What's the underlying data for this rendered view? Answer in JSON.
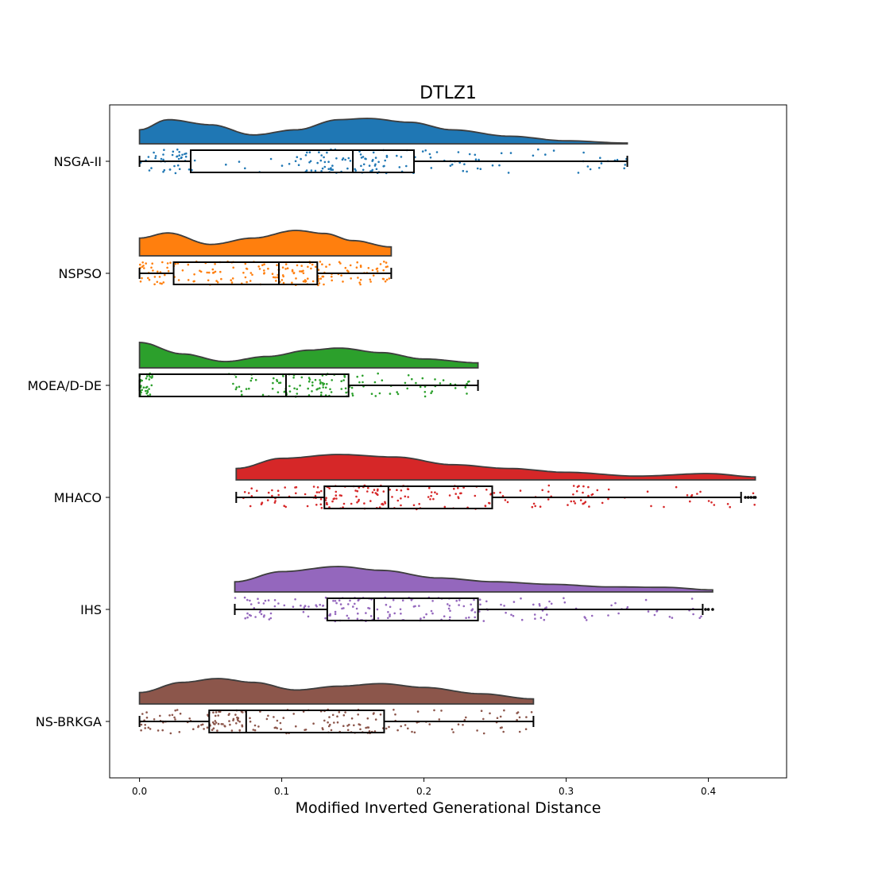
{
  "chart_data": {
    "type": "raincloud",
    "title": "DTLZ1",
    "xlabel": "Modified Inverted Generational Distance",
    "ylabel": "",
    "xlim": [
      -0.021,
      0.455
    ],
    "x_ticks": [
      "0.0",
      "0.1",
      "0.2",
      "0.3",
      "0.4"
    ],
    "x_tick_values": [
      0.0,
      0.1,
      0.2,
      0.3,
      0.4
    ],
    "grid": false,
    "series": [
      {
        "name": "NSGA-II",
        "color": "#1f77b4",
        "min": 0.0,
        "q1": 0.036,
        "median": 0.15,
        "q3": 0.193,
        "max": 0.343,
        "outliers": [],
        "density_x": [
          0.0,
          0.02,
          0.05,
          0.08,
          0.11,
          0.14,
          0.16,
          0.19,
          0.22,
          0.26,
          0.3,
          0.343
        ],
        "density_y": [
          0.55,
          0.95,
          0.75,
          0.35,
          0.55,
          0.95,
          1.0,
          0.85,
          0.55,
          0.3,
          0.12,
          0.03
        ],
        "jitter_clusters": [
          [
            0.0,
            0.04,
            40
          ],
          [
            0.06,
            0.11,
            8
          ],
          [
            0.11,
            0.19,
            80
          ],
          [
            0.19,
            0.25,
            25
          ],
          [
            0.25,
            0.343,
            22
          ]
        ]
      },
      {
        "name": "NSPSO",
        "color": "#ff7f0e",
        "min": 0.0,
        "q1": 0.024,
        "median": 0.098,
        "q3": 0.125,
        "max": 0.177,
        "outliers": [],
        "density_x": [
          0.0,
          0.02,
          0.05,
          0.08,
          0.11,
          0.13,
          0.15,
          0.177
        ],
        "density_y": [
          0.7,
          0.9,
          0.45,
          0.7,
          1.0,
          0.88,
          0.6,
          0.35
        ],
        "jitter_clusters": [
          [
            0.0,
            0.03,
            35
          ],
          [
            0.03,
            0.09,
            50
          ],
          [
            0.09,
            0.13,
            60
          ],
          [
            0.13,
            0.177,
            45
          ]
        ]
      },
      {
        "name": "MOEA/D-DE",
        "color": "#2ca02c",
        "min": 0.0,
        "q1": 0.0,
        "median": 0.103,
        "q3": 0.147,
        "max": 0.238,
        "outliers": [],
        "density_x": [
          0.0,
          0.03,
          0.06,
          0.09,
          0.12,
          0.14,
          0.17,
          0.2,
          0.238
        ],
        "density_y": [
          1.0,
          0.55,
          0.25,
          0.45,
          0.7,
          0.78,
          0.6,
          0.35,
          0.2
        ],
        "jitter_clusters": [
          [
            0.0,
            0.01,
            35
          ],
          [
            0.06,
            0.1,
            25
          ],
          [
            0.1,
            0.147,
            60
          ],
          [
            0.147,
            0.238,
            45
          ]
        ]
      },
      {
        "name": "MHACO",
        "color": "#d62728",
        "min": 0.068,
        "q1": 0.13,
        "median": 0.175,
        "q3": 0.248,
        "max": 0.423,
        "outliers": [
          0.426,
          0.428,
          0.43,
          0.432,
          0.433
        ],
        "density_x": [
          0.068,
          0.1,
          0.14,
          0.18,
          0.22,
          0.26,
          0.3,
          0.35,
          0.4,
          0.433
        ],
        "density_y": [
          0.45,
          0.85,
          1.0,
          0.9,
          0.6,
          0.45,
          0.3,
          0.15,
          0.25,
          0.12
        ],
        "jitter_clusters": [
          [
            0.068,
            0.13,
            40
          ],
          [
            0.13,
            0.175,
            55
          ],
          [
            0.175,
            0.248,
            50
          ],
          [
            0.248,
            0.33,
            40
          ],
          [
            0.33,
            0.433,
            18
          ]
        ]
      },
      {
        "name": "IHS",
        "color": "#9467bd",
        "min": 0.067,
        "q1": 0.132,
        "median": 0.165,
        "q3": 0.238,
        "max": 0.396,
        "outliers": [
          0.398,
          0.4,
          0.403
        ],
        "density_x": [
          0.067,
          0.1,
          0.14,
          0.17,
          0.21,
          0.25,
          0.29,
          0.33,
          0.37,
          0.403
        ],
        "density_y": [
          0.4,
          0.8,
          1.0,
          0.85,
          0.55,
          0.4,
          0.3,
          0.2,
          0.18,
          0.08
        ],
        "jitter_clusters": [
          [
            0.067,
            0.132,
            45
          ],
          [
            0.132,
            0.165,
            40
          ],
          [
            0.165,
            0.238,
            55
          ],
          [
            0.238,
            0.32,
            35
          ],
          [
            0.32,
            0.403,
            20
          ]
        ]
      },
      {
        "name": "NS-BRKGA",
        "color": "#8c564b",
        "min": 0.0,
        "q1": 0.049,
        "median": 0.075,
        "q3": 0.172,
        "max": 0.277,
        "outliers": [],
        "density_x": [
          0.0,
          0.03,
          0.055,
          0.08,
          0.11,
          0.14,
          0.17,
          0.2,
          0.24,
          0.277
        ],
        "density_y": [
          0.45,
          0.85,
          1.0,
          0.85,
          0.55,
          0.7,
          0.8,
          0.65,
          0.4,
          0.2
        ],
        "jitter_clusters": [
          [
            0.0,
            0.049,
            40
          ],
          [
            0.049,
            0.075,
            45
          ],
          [
            0.075,
            0.13,
            30
          ],
          [
            0.13,
            0.172,
            45
          ],
          [
            0.172,
            0.277,
            45
          ]
        ]
      }
    ]
  }
}
